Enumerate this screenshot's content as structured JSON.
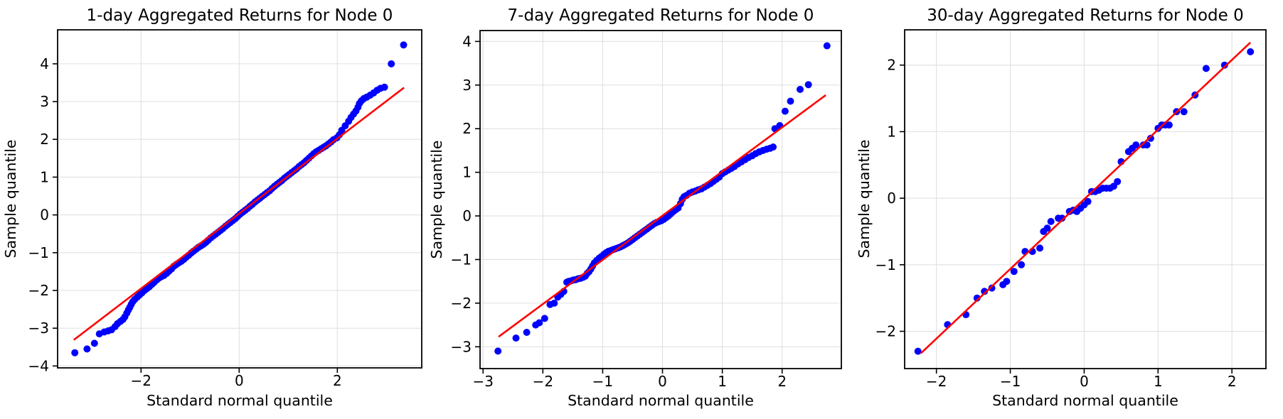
{
  "figure": {
    "background": "#ffffff"
  },
  "style": {
    "dot_color": "#0000ff",
    "ref_line_color": "#ff0000",
    "grid_color": "#e0e0e0",
    "axis_color": "#000000",
    "text_color": "#000000"
  },
  "chart_data": [
    {
      "type": "scatter",
      "title": "1-day Aggregated Returns for Node 0",
      "xlabel": "Standard normal quantile",
      "ylabel": "Sample quantile",
      "xlim": [
        -3.7,
        3.72
      ],
      "ylim": [
        -4.05,
        4.9
      ],
      "xticks": [
        -2,
        0,
        2
      ],
      "yticks": [
        -4,
        -3,
        -2,
        -1,
        0,
        1,
        2,
        3,
        4
      ],
      "grid": true,
      "legend": null,
      "ref_line": {
        "x1": -3.37,
        "y1": -3.31,
        "x2": 3.36,
        "y2": 3.37
      },
      "points": [
        [
          -3.35,
          -3.65
        ],
        [
          -3.1,
          -3.55
        ],
        [
          -2.95,
          -3.4
        ],
        [
          -2.85,
          -3.15
        ],
        [
          -2.75,
          -3.1
        ],
        [
          -2.67,
          -3.07
        ],
        [
          -2.6,
          -3.04
        ],
        [
          -2.53,
          -2.96
        ],
        [
          -2.48,
          -2.88
        ],
        [
          -2.42,
          -2.82
        ],
        [
          -2.37,
          -2.77
        ],
        [
          -2.33,
          -2.7
        ],
        [
          -2.29,
          -2.6
        ],
        [
          -2.26,
          -2.52
        ],
        [
          -2.23,
          -2.45
        ],
        [
          -2.2,
          -2.37
        ],
        [
          -2.17,
          -2.3
        ],
        [
          -2.13,
          -2.24
        ],
        [
          -2.08,
          -2.18
        ],
        [
          -2.03,
          -2.12
        ],
        [
          -1.98,
          -2.06
        ],
        [
          -1.93,
          -2.0
        ],
        [
          -1.88,
          -1.95
        ],
        [
          -1.83,
          -1.9
        ],
        [
          -1.78,
          -1.84
        ],
        [
          -1.73,
          -1.78
        ],
        [
          -1.68,
          -1.72
        ],
        [
          -1.63,
          -1.67
        ],
        [
          -1.58,
          -1.63
        ],
        [
          -1.53,
          -1.6
        ],
        [
          -1.48,
          -1.55
        ],
        [
          -1.43,
          -1.49
        ],
        [
          -1.38,
          -1.43
        ],
        [
          -1.33,
          -1.36
        ],
        [
          -1.28,
          -1.31
        ],
        [
          -1.23,
          -1.27
        ],
        [
          -1.18,
          -1.23
        ],
        [
          -1.13,
          -1.18
        ],
        [
          -1.08,
          -1.12
        ],
        [
          -1.03,
          -1.07
        ],
        [
          -0.98,
          -1.01
        ],
        [
          -0.93,
          -0.96
        ],
        [
          -0.88,
          -0.91
        ],
        [
          -0.83,
          -0.86
        ],
        [
          -0.78,
          -0.82
        ],
        [
          -0.73,
          -0.78
        ],
        [
          -0.68,
          -0.73
        ],
        [
          -0.63,
          -0.67
        ],
        [
          -0.58,
          -0.61
        ],
        [
          -0.53,
          -0.56
        ],
        [
          -0.48,
          -0.51
        ],
        [
          -0.43,
          -0.46
        ],
        [
          -0.38,
          -0.41
        ],
        [
          -0.33,
          -0.36
        ],
        [
          -0.28,
          -0.3
        ],
        [
          -0.23,
          -0.25
        ],
        [
          -0.18,
          -0.2
        ],
        [
          -0.13,
          -0.15
        ],
        [
          -0.08,
          -0.1
        ],
        [
          -0.03,
          -0.04
        ],
        [
          0.02,
          0.02
        ],
        [
          0.07,
          0.07
        ],
        [
          0.12,
          0.12
        ],
        [
          0.17,
          0.17
        ],
        [
          0.22,
          0.23
        ],
        [
          0.27,
          0.28
        ],
        [
          0.32,
          0.34
        ],
        [
          0.37,
          0.39
        ],
        [
          0.42,
          0.44
        ],
        [
          0.47,
          0.49
        ],
        [
          0.52,
          0.54
        ],
        [
          0.57,
          0.59
        ],
        [
          0.62,
          0.64
        ],
        [
          0.67,
          0.7
        ],
        [
          0.72,
          0.76
        ],
        [
          0.77,
          0.81
        ],
        [
          0.82,
          0.86
        ],
        [
          0.87,
          0.91
        ],
        [
          0.92,
          0.97
        ],
        [
          0.97,
          1.02
        ],
        [
          1.02,
          1.07
        ],
        [
          1.07,
          1.12
        ],
        [
          1.12,
          1.17
        ],
        [
          1.17,
          1.22
        ],
        [
          1.22,
          1.28
        ],
        [
          1.27,
          1.33
        ],
        [
          1.32,
          1.38
        ],
        [
          1.37,
          1.44
        ],
        [
          1.42,
          1.5
        ],
        [
          1.47,
          1.56
        ],
        [
          1.52,
          1.62
        ],
        [
          1.57,
          1.67
        ],
        [
          1.62,
          1.71
        ],
        [
          1.67,
          1.75
        ],
        [
          1.72,
          1.79
        ],
        [
          1.77,
          1.83
        ],
        [
          1.82,
          1.88
        ],
        [
          1.87,
          1.93
        ],
        [
          1.92,
          1.99
        ],
        [
          1.99,
          2.04
        ],
        [
          2.04,
          2.12
        ],
        [
          2.09,
          2.24
        ],
        [
          2.16,
          2.36
        ],
        [
          2.23,
          2.48
        ],
        [
          2.28,
          2.58
        ],
        [
          2.33,
          2.67
        ],
        [
          2.38,
          2.75
        ],
        [
          2.42,
          2.85
        ],
        [
          2.45,
          2.95
        ],
        [
          2.49,
          3.02
        ],
        [
          2.54,
          3.08
        ],
        [
          2.6,
          3.12
        ],
        [
          2.67,
          3.17
        ],
        [
          2.74,
          3.23
        ],
        [
          2.81,
          3.3
        ],
        [
          2.88,
          3.35
        ],
        [
          2.96,
          3.38
        ],
        [
          3.1,
          4.0
        ],
        [
          3.35,
          4.5
        ]
      ]
    },
    {
      "type": "scatter",
      "title": "7-day Aggregated Returns for Node 0",
      "xlabel": "Standard normal quantile",
      "ylabel": "Sample quantile",
      "xlim": [
        -3.05,
        2.99
      ],
      "ylim": [
        -3.5,
        4.25
      ],
      "xticks": [
        -3,
        -2,
        -1,
        0,
        1,
        2,
        3
      ],
      "yticks": [
        -3,
        -2,
        -1,
        0,
        1,
        2,
        3,
        4
      ],
      "grid": true,
      "legend": null,
      "ref_line": {
        "x1": -2.74,
        "y1": -2.77,
        "x2": 2.73,
        "y2": 2.77
      },
      "points": [
        [
          -2.75,
          -3.1
        ],
        [
          -2.45,
          -2.8
        ],
        [
          -2.27,
          -2.67
        ],
        [
          -2.12,
          -2.5
        ],
        [
          -2.06,
          -2.45
        ],
        [
          -1.97,
          -2.35
        ],
        [
          -1.88,
          -2.03
        ],
        [
          -1.81,
          -2.0
        ],
        [
          -1.75,
          -1.86
        ],
        [
          -1.7,
          -1.8
        ],
        [
          -1.65,
          -1.73
        ],
        [
          -1.6,
          -1.52
        ],
        [
          -1.57,
          -1.5
        ],
        [
          -1.53,
          -1.49
        ],
        [
          -1.49,
          -1.47
        ],
        [
          -1.45,
          -1.46
        ],
        [
          -1.41,
          -1.44
        ],
        [
          -1.37,
          -1.43
        ],
        [
          -1.33,
          -1.41
        ],
        [
          -1.29,
          -1.38
        ],
        [
          -1.26,
          -1.32
        ],
        [
          -1.23,
          -1.28
        ],
        [
          -1.2,
          -1.22
        ],
        [
          -1.17,
          -1.15
        ],
        [
          -1.14,
          -1.08
        ],
        [
          -1.1,
          -1.02
        ],
        [
          -1.06,
          -0.97
        ],
        [
          -1.02,
          -0.93
        ],
        [
          -0.98,
          -0.88
        ],
        [
          -0.94,
          -0.84
        ],
        [
          -0.9,
          -0.81
        ],
        [
          -0.86,
          -0.79
        ],
        [
          -0.82,
          -0.77
        ],
        [
          -0.78,
          -0.75
        ],
        [
          -0.74,
          -0.73
        ],
        [
          -0.7,
          -0.71
        ],
        [
          -0.66,
          -0.68
        ],
        [
          -0.62,
          -0.65
        ],
        [
          -0.58,
          -0.62
        ],
        [
          -0.54,
          -0.58
        ],
        [
          -0.5,
          -0.54
        ],
        [
          -0.46,
          -0.5
        ],
        [
          -0.42,
          -0.46
        ],
        [
          -0.38,
          -0.42
        ],
        [
          -0.34,
          -0.38
        ],
        [
          -0.3,
          -0.34
        ],
        [
          -0.26,
          -0.3
        ],
        [
          -0.22,
          -0.26
        ],
        [
          -0.18,
          -0.22
        ],
        [
          -0.14,
          -0.18
        ],
        [
          -0.1,
          -0.15
        ],
        [
          -0.06,
          -0.13
        ],
        [
          -0.02,
          -0.11
        ],
        [
          0.02,
          -0.08
        ],
        [
          0.06,
          -0.04
        ],
        [
          0.1,
          0.0
        ],
        [
          0.14,
          0.05
        ],
        [
          0.18,
          0.1
        ],
        [
          0.22,
          0.14
        ],
        [
          0.26,
          0.18
        ],
        [
          0.3,
          0.28
        ],
        [
          0.33,
          0.38
        ],
        [
          0.36,
          0.44
        ],
        [
          0.4,
          0.47
        ],
        [
          0.45,
          0.52
        ],
        [
          0.5,
          0.55
        ],
        [
          0.55,
          0.57
        ],
        [
          0.6,
          0.6
        ],
        [
          0.65,
          0.62
        ],
        [
          0.7,
          0.66
        ],
        [
          0.75,
          0.7
        ],
        [
          0.8,
          0.74
        ],
        [
          0.85,
          0.79
        ],
        [
          0.9,
          0.84
        ],
        [
          0.95,
          0.89
        ],
        [
          1.0,
          0.97
        ],
        [
          1.05,
          1.01
        ],
        [
          1.1,
          1.05
        ],
        [
          1.15,
          1.09
        ],
        [
          1.2,
          1.13
        ],
        [
          1.26,
          1.19
        ],
        [
          1.32,
          1.24
        ],
        [
          1.38,
          1.29
        ],
        [
          1.44,
          1.34
        ],
        [
          1.5,
          1.38
        ],
        [
          1.56,
          1.43
        ],
        [
          1.62,
          1.47
        ],
        [
          1.68,
          1.5
        ],
        [
          1.74,
          1.53
        ],
        [
          1.8,
          1.55
        ],
        [
          1.85,
          1.58
        ],
        [
          1.88,
          2.0
        ],
        [
          1.96,
          2.07
        ],
        [
          2.05,
          2.4
        ],
        [
          2.14,
          2.63
        ],
        [
          2.3,
          2.9
        ],
        [
          2.44,
          3.01
        ],
        [
          2.75,
          3.9
        ]
      ]
    },
    {
      "type": "scatter",
      "title": "30-day Aggregated Returns for Node 0",
      "xlabel": "Standard normal quantile",
      "ylabel": "Sample quantile",
      "xlim": [
        -2.43,
        2.46
      ],
      "ylim": [
        -2.56,
        2.53
      ],
      "xticks": [
        -2,
        -1,
        0,
        1,
        2
      ],
      "yticks": [
        -2,
        -1,
        0,
        1,
        2
      ],
      "grid": true,
      "legend": null,
      "ref_line": {
        "x1": -2.21,
        "y1": -2.33,
        "x2": 2.25,
        "y2": 2.34
      },
      "points": [
        [
          -2.25,
          -2.3
        ],
        [
          -1.85,
          -1.9
        ],
        [
          -1.6,
          -1.75
        ],
        [
          -1.45,
          -1.5
        ],
        [
          -1.35,
          -1.4
        ],
        [
          -1.25,
          -1.35
        ],
        [
          -1.1,
          -1.3
        ],
        [
          -1.05,
          -1.25
        ],
        [
          -0.95,
          -1.1
        ],
        [
          -0.85,
          -1.0
        ],
        [
          -0.8,
          -0.8
        ],
        [
          -0.7,
          -0.8
        ],
        [
          -0.6,
          -0.75
        ],
        [
          -0.55,
          -0.5
        ],
        [
          -0.5,
          -0.45
        ],
        [
          -0.45,
          -0.35
        ],
        [
          -0.35,
          -0.3
        ],
        [
          -0.3,
          -0.3
        ],
        [
          -0.2,
          -0.2
        ],
        [
          -0.15,
          -0.18
        ],
        [
          -0.1,
          -0.2
        ],
        [
          -0.05,
          -0.15
        ],
        [
          0.0,
          -0.1
        ],
        [
          0.05,
          -0.05
        ],
        [
          0.1,
          0.1
        ],
        [
          0.15,
          0.1
        ],
        [
          0.2,
          0.12
        ],
        [
          0.25,
          0.15
        ],
        [
          0.3,
          0.15
        ],
        [
          0.35,
          0.15
        ],
        [
          0.4,
          0.18
        ],
        [
          0.45,
          0.25
        ],
        [
          0.5,
          0.55
        ],
        [
          0.6,
          0.7
        ],
        [
          0.65,
          0.75
        ],
        [
          0.7,
          0.8
        ],
        [
          0.8,
          0.8
        ],
        [
          0.85,
          0.8
        ],
        [
          0.9,
          0.9
        ],
        [
          1.0,
          1.05
        ],
        [
          1.05,
          1.1
        ],
        [
          1.1,
          1.1
        ],
        [
          1.15,
          1.1
        ],
        [
          1.25,
          1.3
        ],
        [
          1.35,
          1.3
        ],
        [
          1.5,
          1.55
        ],
        [
          1.65,
          1.95
        ],
        [
          1.9,
          2.0
        ],
        [
          2.25,
          2.2
        ]
      ]
    }
  ]
}
